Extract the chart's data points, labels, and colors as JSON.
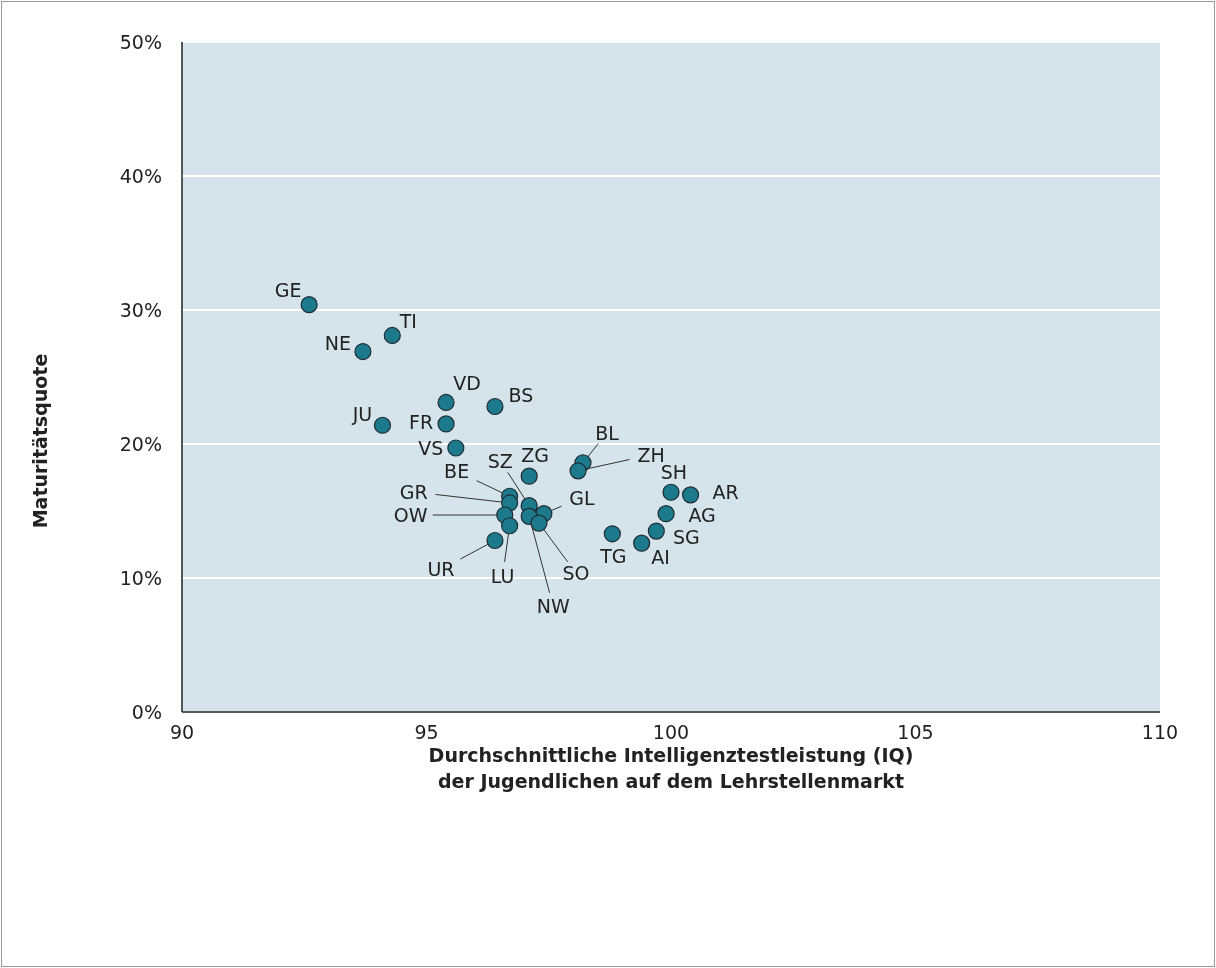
{
  "chart_data": {
    "type": "scatter",
    "xlabel": "Durchschnittliche Intelligenztestleistung (IQ)\nder Jugendlichen auf dem Lehrstellenmarkt",
    "ylabel": "Maturitätsquote",
    "series": [
      {
        "color": "#1c7a8c",
        "x": [
          92.6,
          94.3,
          93.7,
          95.4,
          96.4,
          94.1,
          95.4,
          95.6,
          97.1,
          98.2,
          98.1,
          100.0,
          100.4,
          99.9,
          99.7,
          99.4,
          98.8,
          96.7,
          96.7,
          96.6,
          97.1,
          97.4,
          97.1,
          97.3,
          96.7,
          96.4
        ],
        "values": [
          30.4,
          28.1,
          26.9,
          23.1,
          22.8,
          21.4,
          21.5,
          19.7,
          17.6,
          18.6,
          18.0,
          16.4,
          16.2,
          14.8,
          13.5,
          12.6,
          13.3,
          16.1,
          15.6,
          14.7,
          15.4,
          14.8,
          14.6,
          14.1,
          13.9,
          12.8
        ]
      }
    ],
    "annotations": [
      {
        "text": "GE",
        "x": 92.6,
        "y": 30.4
      },
      {
        "text": "TI",
        "x": 94.3,
        "y": 28.1
      },
      {
        "text": "NE",
        "x": 93.7,
        "y": 26.9
      },
      {
        "text": "VD",
        "x": 95.4,
        "y": 23.1
      },
      {
        "text": "BS",
        "x": 96.4,
        "y": 22.8
      },
      {
        "text": "JU",
        "x": 94.1,
        "y": 21.4
      },
      {
        "text": "FR",
        "x": 95.4,
        "y": 21.5
      },
      {
        "text": "VS",
        "x": 95.6,
        "y": 19.7
      },
      {
        "text": "ZG",
        "x": 97.1,
        "y": 17.6
      },
      {
        "text": "BL",
        "x": 98.2,
        "y": 18.6
      },
      {
        "text": "ZH",
        "x": 98.1,
        "y": 18.0
      },
      {
        "text": "SH",
        "x": 100.0,
        "y": 16.4
      },
      {
        "text": "AR",
        "x": 100.4,
        "y": 16.2
      },
      {
        "text": "AG",
        "x": 99.9,
        "y": 14.8
      },
      {
        "text": "SG",
        "x": 99.7,
        "y": 13.5
      },
      {
        "text": "AI",
        "x": 99.4,
        "y": 12.6
      },
      {
        "text": "TG",
        "x": 98.8,
        "y": 13.3
      },
      {
        "text": "BE",
        "x": 96.7,
        "y": 16.1
      },
      {
        "text": "GR",
        "x": 96.7,
        "y": 15.6
      },
      {
        "text": "OW",
        "x": 96.6,
        "y": 14.7
      },
      {
        "text": "SZ",
        "x": 97.1,
        "y": 15.4
      },
      {
        "text": "GL",
        "x": 97.4,
        "y": 14.8
      },
      {
        "text": "NW",
        "x": 97.1,
        "y": 14.6
      },
      {
        "text": "SO",
        "x": 97.3,
        "y": 14.1
      },
      {
        "text": "LU",
        "x": 96.7,
        "y": 13.9
      },
      {
        "text": "UR",
        "x": 96.4,
        "y": 12.8
      }
    ],
    "xlim": [
      90,
      110
    ],
    "xticks": [
      90,
      95,
      100,
      105,
      110
    ],
    "ylim": [
      0,
      50
    ],
    "yticks": [
      {
        "value": 0,
        "label": "0%"
      },
      {
        "value": 10,
        "label": "10%"
      },
      {
        "value": 20,
        "label": "20%"
      },
      {
        "value": 30,
        "label": "30%"
      },
      {
        "value": 40,
        "label": "40%"
      },
      {
        "value": 50,
        "label": "50%"
      }
    ],
    "grid": "y",
    "marker": "circle"
  }
}
